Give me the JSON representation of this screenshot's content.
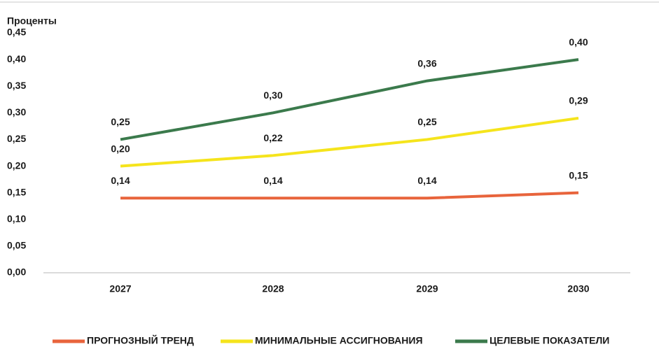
{
  "chart_data": {
    "type": "line",
    "y_axis_label": "Проценты",
    "categories": [
      "2027",
      "2028",
      "2029",
      "2030"
    ],
    "series": [
      {
        "name": "ПРОГНОЗНЫЙ ТРЕНД",
        "color": "#e8643c",
        "values": [
          0.14,
          0.14,
          0.14,
          0.15
        ],
        "value_labels": [
          "0,14",
          "0,14",
          "0,14",
          "0,15"
        ]
      },
      {
        "name": "МИНИМАЛЬНЫЕ АССИГНОВАНИЯ",
        "color": "#f5e41c",
        "values": [
          0.2,
          0.22,
          0.25,
          0.29
        ],
        "value_labels": [
          "0,20",
          "0,22",
          "0,25",
          "0,29"
        ]
      },
      {
        "name": "ЦЕЛЕВЫЕ ПОКАЗАТЕЛИ",
        "color": "#3b7a4c",
        "values": [
          0.25,
          0.3,
          0.36,
          0.4
        ],
        "value_labels": [
          "0,25",
          "0,30",
          "0,36",
          "0,40"
        ]
      }
    ],
    "ylim": [
      0,
      0.45
    ],
    "yticks": [
      {
        "value": 0,
        "label": "0,00"
      },
      {
        "value": 0.05,
        "label": "0,05"
      },
      {
        "value": 0.1,
        "label": "0,10"
      },
      {
        "value": 0.15,
        "label": "0,15"
      },
      {
        "value": 0.2,
        "label": "0,20"
      },
      {
        "value": 0.25,
        "label": "0,25"
      },
      {
        "value": 0.3,
        "label": "0,30"
      },
      {
        "value": 0.35,
        "label": "0,35"
      },
      {
        "value": 0.4,
        "label": "0,40"
      },
      {
        "value": 0.45,
        "label": "0,45"
      }
    ],
    "grid": false,
    "legend": "bottom"
  }
}
